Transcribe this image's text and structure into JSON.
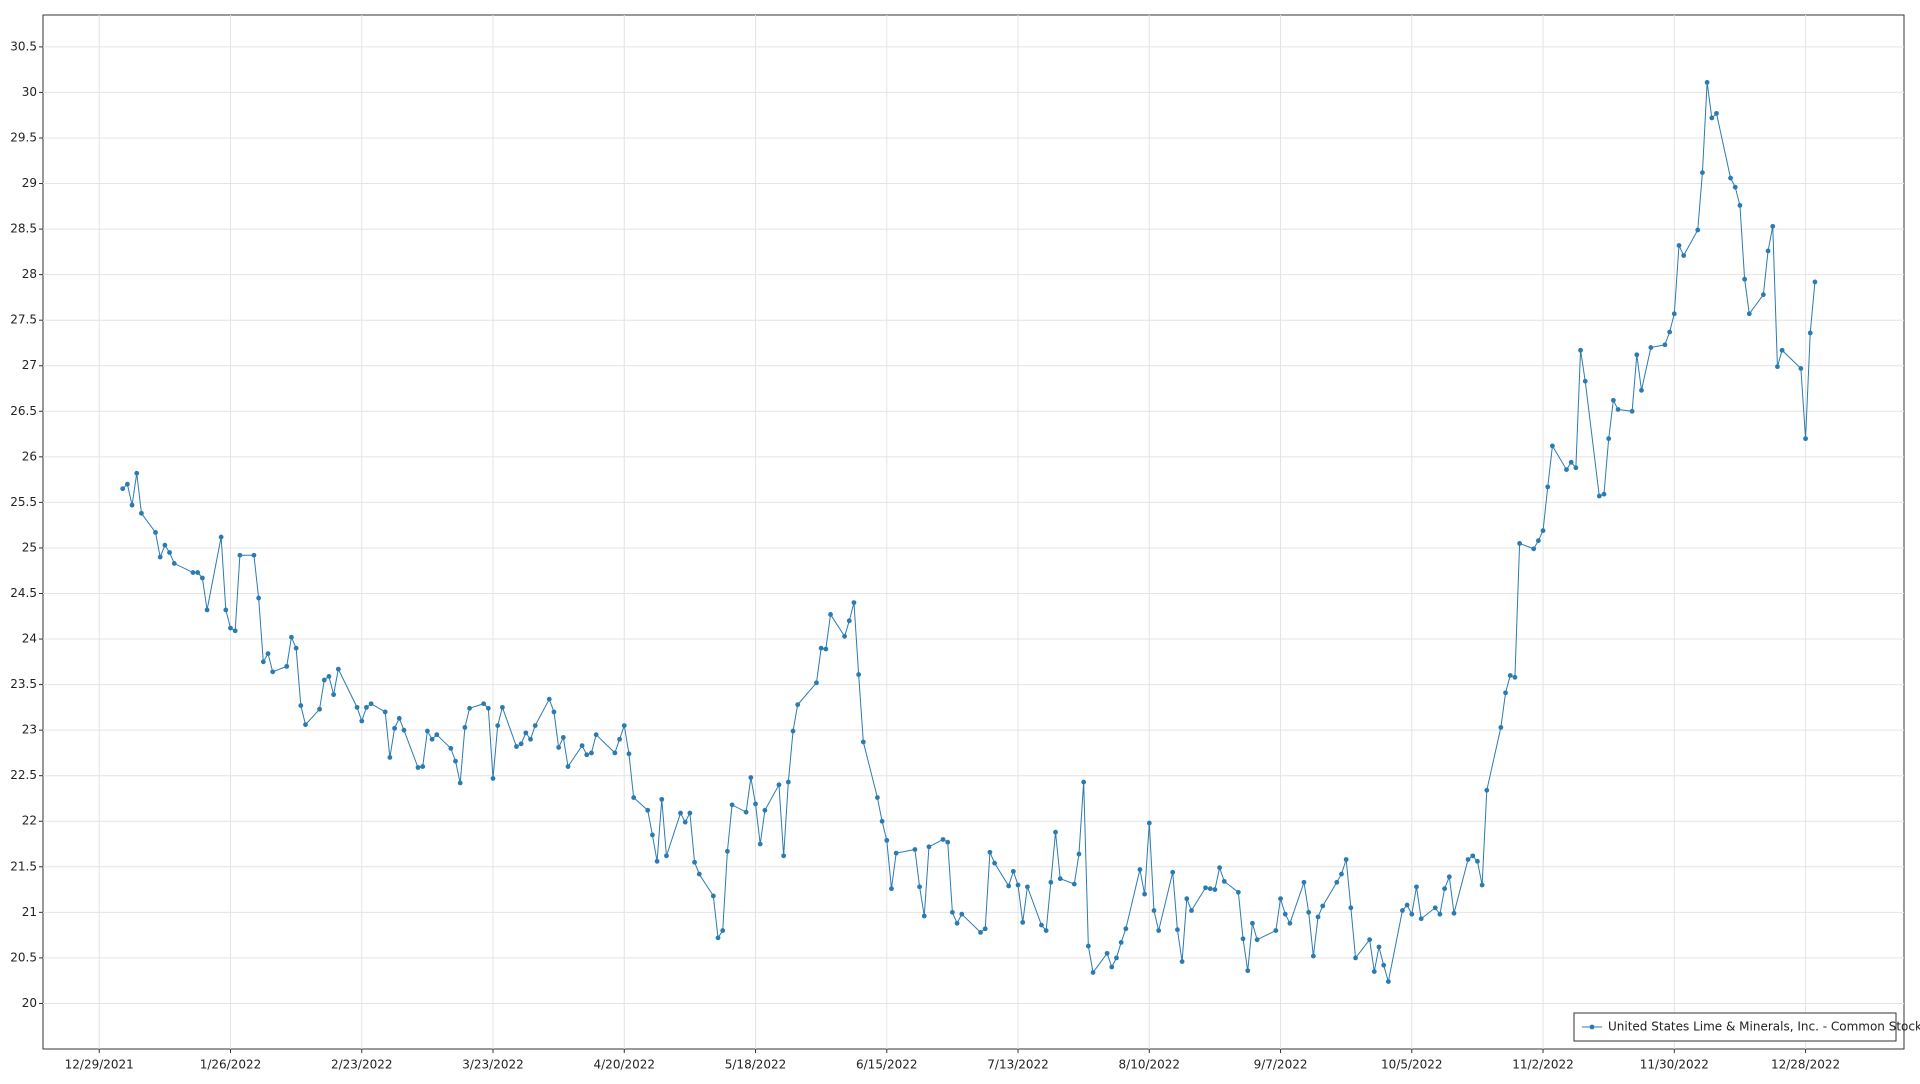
{
  "chart_data": {
    "type": "line",
    "x": [
      "1/3/2022",
      "1/4/2022",
      "1/5/2022",
      "1/6/2022",
      "1/7/2022",
      "1/10/2022",
      "1/11/2022",
      "1/12/2022",
      "1/13/2022",
      "1/14/2022",
      "1/18/2022",
      "1/19/2022",
      "1/20/2022",
      "1/21/2022",
      "1/24/2022",
      "1/25/2022",
      "1/26/2022",
      "1/27/2022",
      "1/28/2022",
      "1/31/2022",
      "2/1/2022",
      "2/2/2022",
      "2/3/2022",
      "2/4/2022",
      "2/7/2022",
      "2/8/2022",
      "2/9/2022",
      "2/10/2022",
      "2/11/2022",
      "2/14/2022",
      "2/15/2022",
      "2/16/2022",
      "2/17/2022",
      "2/18/2022",
      "2/22/2022",
      "2/23/2022",
      "2/24/2022",
      "2/25/2022",
      "2/28/2022",
      "3/1/2022",
      "3/2/2022",
      "3/3/2022",
      "3/4/2022",
      "3/7/2022",
      "3/8/2022",
      "3/9/2022",
      "3/10/2022",
      "3/11/2022",
      "3/14/2022",
      "3/15/2022",
      "3/16/2022",
      "3/17/2022",
      "3/18/2022",
      "3/21/2022",
      "3/22/2022",
      "3/23/2022",
      "3/24/2022",
      "3/25/2022",
      "3/28/2022",
      "3/29/2022",
      "3/30/2022",
      "3/31/2022",
      "4/1/2022",
      "4/4/2022",
      "4/5/2022",
      "4/6/2022",
      "4/7/2022",
      "4/8/2022",
      "4/11/2022",
      "4/12/2022",
      "4/13/2022",
      "4/14/2022",
      "4/18/2022",
      "4/19/2022",
      "4/20/2022",
      "4/21/2022",
      "4/22/2022",
      "4/25/2022",
      "4/26/2022",
      "4/27/2022",
      "4/28/2022",
      "4/29/2022",
      "5/2/2022",
      "5/3/2022",
      "5/4/2022",
      "5/5/2022",
      "5/6/2022",
      "5/9/2022",
      "5/10/2022",
      "5/11/2022",
      "5/12/2022",
      "5/13/2022",
      "5/16/2022",
      "5/17/2022",
      "5/18/2022",
      "5/19/2022",
      "5/20/2022",
      "5/23/2022",
      "5/24/2022",
      "5/25/2022",
      "5/26/2022",
      "5/27/2022",
      "5/31/2022",
      "6/1/2022",
      "6/2/2022",
      "6/3/2022",
      "6/6/2022",
      "6/7/2022",
      "6/8/2022",
      "6/9/2022",
      "6/10/2022",
      "6/13/2022",
      "6/14/2022",
      "6/15/2022",
      "6/16/2022",
      "6/17/2022",
      "6/21/2022",
      "6/22/2022",
      "6/23/2022",
      "6/24/2022",
      "6/27/2022",
      "6/28/2022",
      "6/29/2022",
      "6/30/2022",
      "7/1/2022",
      "7/5/2022",
      "7/6/2022",
      "7/7/2022",
      "7/8/2022",
      "7/11/2022",
      "7/12/2022",
      "7/13/2022",
      "7/14/2022",
      "7/15/2022",
      "7/18/2022",
      "7/19/2022",
      "7/20/2022",
      "7/21/2022",
      "7/22/2022",
      "7/25/2022",
      "7/26/2022",
      "7/27/2022",
      "7/28/2022",
      "7/29/2022",
      "8/1/2022",
      "8/2/2022",
      "8/3/2022",
      "8/4/2022",
      "8/5/2022",
      "8/8/2022",
      "8/9/2022",
      "8/10/2022",
      "8/11/2022",
      "8/12/2022",
      "8/15/2022",
      "8/16/2022",
      "8/17/2022",
      "8/18/2022",
      "8/19/2022",
      "8/22/2022",
      "8/23/2022",
      "8/24/2022",
      "8/25/2022",
      "8/26/2022",
      "8/29/2022",
      "8/30/2022",
      "8/31/2022",
      "9/1/2022",
      "9/2/2022",
      "9/6/2022",
      "9/7/2022",
      "9/8/2022",
      "9/9/2022",
      "9/12/2022",
      "9/13/2022",
      "9/14/2022",
      "9/15/2022",
      "9/16/2022",
      "9/19/2022",
      "9/20/2022",
      "9/21/2022",
      "9/22/2022",
      "9/23/2022",
      "9/26/2022",
      "9/27/2022",
      "9/28/2022",
      "9/29/2022",
      "9/30/2022",
      "10/3/2022",
      "10/4/2022",
      "10/5/2022",
      "10/6/2022",
      "10/7/2022",
      "10/10/2022",
      "10/11/2022",
      "10/12/2022",
      "10/13/2022",
      "10/14/2022",
      "10/17/2022",
      "10/18/2022",
      "10/19/2022",
      "10/20/2022",
      "10/21/2022",
      "10/24/2022",
      "10/25/2022",
      "10/26/2022",
      "10/27/2022",
      "10/28/2022",
      "10/31/2022",
      "11/1/2022",
      "11/2/2022",
      "11/3/2022",
      "11/4/2022",
      "11/7/2022",
      "11/8/2022",
      "11/9/2022",
      "11/10/2022",
      "11/11/2022",
      "11/14/2022",
      "11/15/2022",
      "11/16/2022",
      "11/17/2022",
      "11/18/2022",
      "11/21/2022",
      "11/22/2022",
      "11/23/2022",
      "11/25/2022",
      "11/28/2022",
      "11/29/2022",
      "11/30/2022",
      "12/1/2022",
      "12/2/2022",
      "12/5/2022",
      "12/6/2022",
      "12/7/2022",
      "12/8/2022",
      "12/9/2022",
      "12/12/2022",
      "12/13/2022",
      "12/14/2022",
      "12/15/2022",
      "12/16/2022",
      "12/19/2022",
      "12/20/2022",
      "12/21/2022",
      "12/22/2022",
      "12/23/2022",
      "12/27/2022",
      "12/28/2022",
      "12/29/2022",
      "12/30/2022"
    ],
    "series": [
      {
        "name": "United States Lime & Minerals, Inc. - Common Stock",
        "color": "#2b7bb3",
        "values": [
          25.65,
          25.7,
          25.47,
          25.82,
          25.38,
          25.17,
          24.9,
          25.03,
          24.95,
          24.83,
          24.73,
          24.73,
          24.67,
          24.32,
          25.12,
          24.32,
          24.12,
          24.09,
          24.92,
          24.92,
          24.45,
          23.75,
          23.84,
          23.64,
          23.7,
          24.02,
          23.9,
          23.27,
          23.06,
          23.23,
          23.55,
          23.59,
          23.39,
          23.67,
          23.25,
          23.1,
          23.25,
          23.29,
          23.2,
          22.7,
          23.02,
          23.13,
          23.0,
          22.59,
          22.6,
          22.99,
          22.9,
          22.95,
          22.8,
          22.66,
          22.42,
          23.03,
          23.24,
          23.29,
          23.24,
          22.47,
          23.05,
          23.25,
          22.82,
          22.85,
          22.97,
          22.9,
          23.05,
          23.34,
          23.2,
          22.81,
          22.92,
          22.6,
          22.83,
          22.73,
          22.75,
          22.95,
          22.75,
          22.9,
          23.05,
          22.74,
          22.26,
          22.12,
          21.85,
          21.56,
          22.24,
          21.62,
          22.09,
          21.99,
          22.09,
          21.55,
          21.42,
          21.18,
          20.72,
          20.8,
          21.67,
          22.18,
          22.1,
          22.48,
          22.19,
          21.75,
          22.12,
          22.4,
          21.62,
          22.43,
          22.99,
          23.28,
          23.52,
          23.9,
          23.89,
          24.27,
          24.03,
          24.2,
          24.4,
          23.61,
          22.87,
          22.26,
          22.0,
          21.79,
          21.26,
          21.65,
          21.69,
          21.28,
          20.96,
          21.72,
          21.8,
          21.77,
          21.0,
          20.88,
          20.98,
          20.78,
          20.82,
          21.66,
          21.54,
          21.29,
          21.45,
          21.3,
          20.89,
          21.28,
          20.86,
          20.8,
          21.33,
          21.88,
          21.37,
          21.31,
          21.64,
          22.43,
          20.63,
          20.34,
          20.55,
          20.4,
          20.5,
          20.67,
          20.82,
          21.47,
          21.2,
          21.98,
          21.02,
          20.8,
          21.44,
          20.81,
          20.46,
          21.15,
          21.02,
          21.27,
          21.26,
          21.25,
          21.49,
          21.34,
          21.22,
          20.71,
          20.36,
          20.88,
          20.7,
          20.8,
          21.15,
          20.98,
          20.88,
          21.33,
          21.0,
          20.52,
          20.95,
          21.07,
          21.33,
          21.42,
          21.58,
          21.05,
          20.5,
          20.7,
          20.35,
          20.62,
          20.42,
          20.24,
          21.02,
          21.08,
          20.98,
          21.28,
          20.93,
          21.05,
          20.98,
          21.26,
          21.39,
          20.99,
          21.58,
          21.62,
          21.56,
          21.3,
          22.34,
          23.03,
          23.41,
          23.6,
          23.58,
          25.05,
          24.99,
          25.08,
          25.19,
          25.67,
          26.12,
          25.86,
          25.94,
          25.88,
          27.17,
          26.83,
          25.57,
          25.59,
          26.2,
          26.62,
          26.52,
          26.5,
          27.12,
          26.73,
          27.2,
          27.23,
          27.37,
          27.57,
          28.32,
          28.21,
          28.49,
          29.12,
          30.11,
          29.72,
          29.77,
          29.06,
          28.96,
          28.76,
          27.95,
          27.57,
          27.78,
          28.26,
          28.53,
          26.99,
          27.17,
          26.97,
          26.2,
          27.36,
          27.92
        ]
      }
    ],
    "xlim": [
      "12/17/2021",
      "1/18/2023"
    ],
    "xticks": [
      "12/29/2021",
      "1/26/2022",
      "2/23/2022",
      "3/23/2022",
      "4/20/2022",
      "5/18/2022",
      "6/15/2022",
      "7/13/2022",
      "8/10/2022",
      "9/7/2022",
      "10/5/2022",
      "11/2/2022",
      "11/30/2022",
      "12/28/2022"
    ],
    "ylim": [
      19.5,
      30.85
    ],
    "yticks": [
      20,
      20.5,
      21,
      21.5,
      22,
      22.5,
      23,
      23.5,
      24,
      24.5,
      25,
      25.5,
      26,
      26.5,
      27,
      27.5,
      28,
      28.5,
      29,
      29.5,
      30,
      30.5
    ],
    "grid": true,
    "legend": "lower right"
  }
}
